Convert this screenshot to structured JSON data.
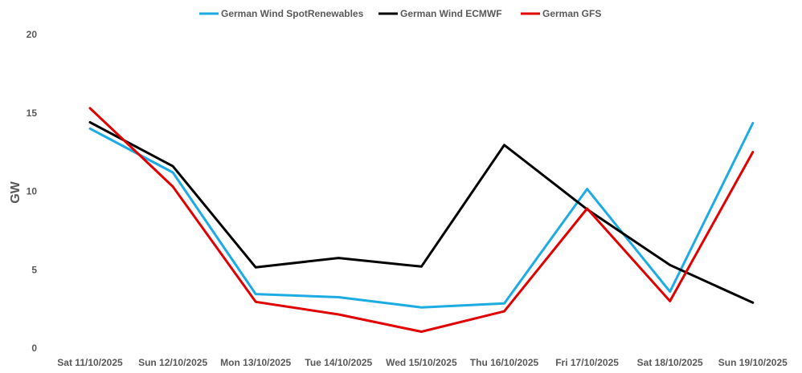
{
  "chart_data": {
    "type": "line",
    "title": "",
    "xlabel": "",
    "ylabel": "GW",
    "ylim": [
      0,
      20
    ],
    "yticks": [
      0,
      5,
      10,
      15,
      20
    ],
    "grid": false,
    "legend_position": "top",
    "categories": [
      "Sat 11/10/2025",
      "Sun 12/10/2025",
      "Mon 13/10/2025",
      "Tue 14/10/2025",
      "Wed 15/10/2025",
      "Thu 16/10/2025",
      "Fri 17/10/2025",
      "Sat 18/10/2025",
      "Sun 19/10/2025"
    ],
    "series": [
      {
        "name": "German Wind SpotRenewables",
        "color": "#1CABE2",
        "values": [
          14.0,
          11.2,
          3.45,
          3.25,
          2.6,
          2.85,
          10.15,
          3.6,
          14.35
        ]
      },
      {
        "name": "German Wind ECMWF",
        "color": "#000000",
        "values": [
          14.4,
          11.6,
          5.15,
          5.75,
          5.2,
          12.95,
          8.85,
          5.3,
          2.9
        ]
      },
      {
        "name": "German GFS",
        "color": "#E00000",
        "values": [
          15.3,
          10.3,
          2.95,
          2.15,
          1.05,
          2.35,
          8.9,
          3.0,
          12.5
        ]
      }
    ]
  }
}
